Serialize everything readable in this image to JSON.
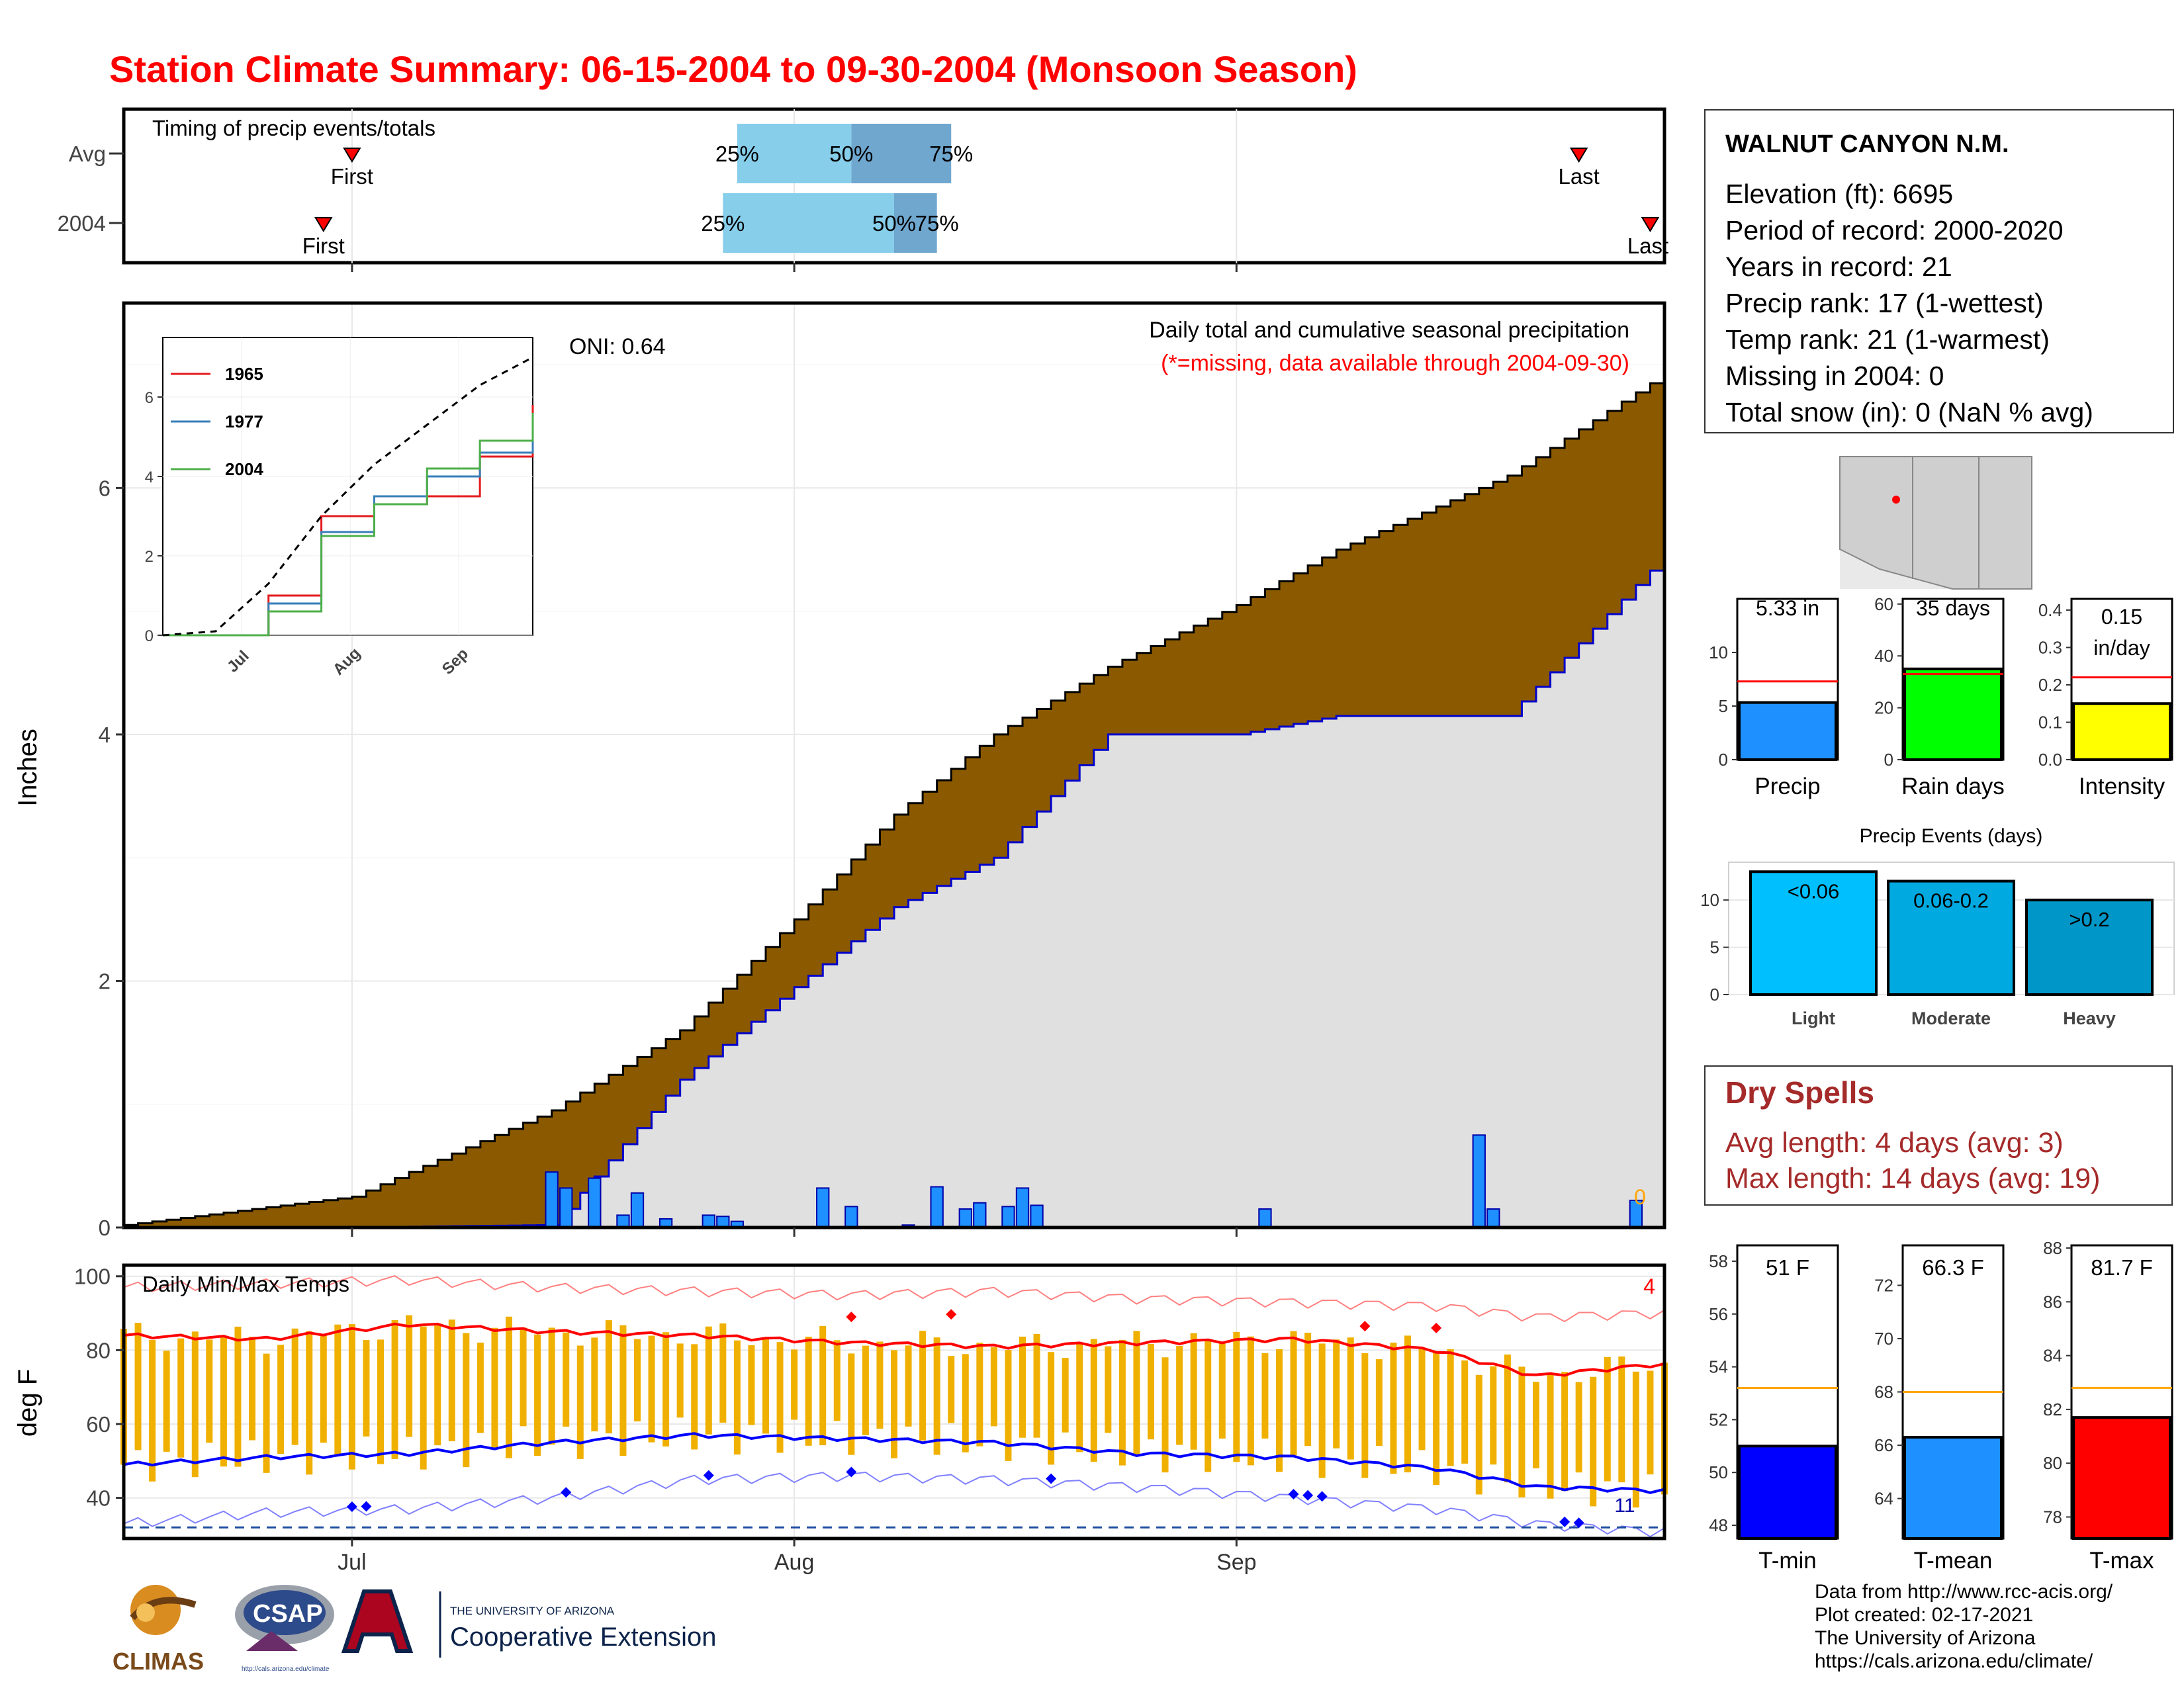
{
  "title": "Station Climate Summary: 06-15-2004 to 09-30-2004 (Monsoon Season)",
  "colors": {
    "title": "#ff0000",
    "cum_current": "#8b5a00",
    "cum_avg_fill": "#e0e0e0",
    "cum_avg_line": "#0000cc",
    "daily_bar": "#1e90ff",
    "bar_light": "#00bfff",
    "bar_moderate": "#00a9e0",
    "bar_heavy": "#0096c7",
    "tmax_line": "#ff0000",
    "tmin_line": "#0000ff",
    "temp_range_bar": "#f0b000",
    "avg_marker": "#ff0000",
    "avg_marker_orange": "#ffa500",
    "dry": "#a52a2a"
  },
  "timing": {
    "label": "Timing of precip events/totals",
    "rows": [
      {
        "name": "Avg",
        "first_label": "First",
        "last_label": "Last",
        "first": "07-01",
        "last": "09-25",
        "p25": "07-28",
        "p50": "08-05",
        "p75": "08-12",
        "pct_labels": [
          "25%",
          "50%",
          "75%"
        ]
      },
      {
        "name": "2004",
        "first_label": "First",
        "last_label": "Last",
        "first": "06-29",
        "last": "09-30",
        "p25": "07-27",
        "p50": "08-08",
        "p75": "08-11",
        "pct_labels": [
          "25%",
          "50%",
          "75%"
        ]
      }
    ]
  },
  "main_panel": {
    "ylabel": "Inches",
    "caption": "Daily total and cumulative seasonal precipitation",
    "missing_note": "(*=missing, data available through 2004-09-30)",
    "oni": "ONI: 0.64",
    "missing_count": "0",
    "y_ticks": [
      "0",
      "2",
      "4",
      "6"
    ],
    "x_ticks": [
      "Jul",
      "Aug",
      "Sep"
    ]
  },
  "inset": {
    "legend": [
      "1965",
      "1977",
      "2004"
    ],
    "legend_colors": [
      "#e41a1c",
      "#377eb8",
      "#4daf4a"
    ],
    "y_ticks": [
      "0",
      "2",
      "4",
      "6"
    ],
    "x_ticks": [
      "Jul",
      "Aug",
      "Sep"
    ]
  },
  "temp_panel": {
    "label": "Daily Min/Max Temps",
    "ylabel": "deg F",
    "y_ticks": [
      "40",
      "60",
      "80",
      "100"
    ],
    "x_ticks": [
      "Jul",
      "Aug",
      "Sep"
    ],
    "count_max": "4",
    "count_min": "11"
  },
  "station": {
    "name": "WALNUT CANYON N.M.",
    "lines": [
      "Elevation (ft): 6695",
      "Period of record: 2000-2020",
      "Years in record: 21",
      "Precip rank: 17 (1-wettest)",
      "Temp rank: 21 (1-warmest)",
      "Missing in 2004: 0",
      "Total snow (in): 0 (NaN % avg)"
    ]
  },
  "small_bars": [
    {
      "label": "Precip",
      "value_label": "5.33 in",
      "value": 5.33,
      "avg": 7.3,
      "ymax": 15,
      "ticks": [
        "0",
        "5",
        "10"
      ],
      "tick_vals": [
        0,
        5,
        10
      ],
      "color": "#1e90ff"
    },
    {
      "label": "Rain days",
      "value_label": "35 days",
      "value": 35,
      "avg": 33,
      "ymax": 62,
      "ticks": [
        "0",
        "20",
        "40",
        "60"
      ],
      "tick_vals": [
        0,
        20,
        40,
        60
      ],
      "color": "#00ff00"
    },
    {
      "label": "Intensity",
      "value_label": "0.15 in/day",
      "value_label_1": "0.15",
      "value_label_2": "in/day",
      "value": 0.15,
      "avg": 0.22,
      "ymax": 0.43,
      "ticks": [
        "0.0",
        "0.1",
        "0.2",
        "0.3",
        "0.4"
      ],
      "tick_vals": [
        0,
        0.1,
        0.2,
        0.3,
        0.4
      ],
      "color": "#ffff00"
    }
  ],
  "events": {
    "title": "Precip Events (days)",
    "categories": [
      "Light",
      "Moderate",
      "Heavy"
    ],
    "bin_labels": [
      "<0.06",
      "0.06-0.2",
      ">0.2"
    ],
    "values": [
      13,
      12,
      10
    ],
    "ticks": [
      "0",
      "5",
      "10"
    ],
    "ymax": 14
  },
  "dry_spells": {
    "title": "Dry Spells",
    "avg": "Avg length: 4 days (avg: 3)",
    "max": "Max length: 14 days (avg: 19)"
  },
  "temp_bars": [
    {
      "label": "T-min",
      "value_label": "51 F",
      "value": 51,
      "avg": 53.2,
      "ymin": 47.5,
      "ymax": 58.6,
      "ticks": [
        "48",
        "50",
        "52",
        "54",
        "56",
        "58"
      ],
      "tick_vals": [
        48,
        50,
        52,
        54,
        56,
        58
      ],
      "color": "#0000ff"
    },
    {
      "label": "T-mean",
      "value_label": "66.3 F",
      "value": 66.3,
      "avg": 68,
      "ymax": 73.5,
      "ymin": 62.5,
      "ticks": [
        "64",
        "66",
        "68",
        "70",
        "72"
      ],
      "tick_vals": [
        64,
        66,
        68,
        70,
        72
      ],
      "color": "#1e90ff"
    },
    {
      "label": "T-max",
      "value_label": "81.7 F",
      "value": 81.7,
      "avg": 82.8,
      "ymin": 77.2,
      "ymax": 88.1,
      "ticks": [
        "78",
        "80",
        "82",
        "84",
        "86",
        "88"
      ],
      "tick_vals": [
        78,
        80,
        82,
        84,
        86,
        88
      ],
      "color": "#ff0000"
    }
  ],
  "credits": [
    "Data from http://www.rcc-acis.org/",
    "Plot created: 02-17-2021",
    "The University of Arizona",
    "https://cals.arizona.edu/climate/"
  ],
  "logos": {
    "climas": "CLIMAS",
    "csap": "CSAP",
    "csap_url": "http://cals.arizona.edu/climate",
    "ua_top": "THE UNIVERSITY OF ARIZONA",
    "ua_bottom": "Cooperative Extension"
  },
  "chart_data": [
    {
      "type": "area",
      "title": "Daily total and cumulative seasonal precipitation",
      "ylabel": "Inches",
      "ylim": [
        0,
        7.5
      ],
      "x": [
        "06-15",
        "07-01",
        "07-15",
        "07-24",
        "08-01",
        "08-08",
        "08-15",
        "08-23",
        "09-01",
        "09-08",
        "09-20",
        "09-30"
      ],
      "series": [
        {
          "name": "Average cumulative",
          "values": [
            0.02,
            0.25,
            0.95,
            1.6,
            2.5,
            3.35,
            4.0,
            4.55,
            5.05,
            5.5,
            6.1,
            6.85
          ]
        },
        {
          "name": "2004 cumulative",
          "values": [
            0.0,
            0.0,
            0.02,
            1.2,
            1.95,
            2.6,
            3.0,
            4.0,
            4.0,
            4.15,
            4.15,
            5.33
          ]
        }
      ],
      "daily_precip": [
        {
          "date": "07-15",
          "value": 0.45
        },
        {
          "date": "07-16",
          "value": 0.32
        },
        {
          "date": "07-18",
          "value": 0.4
        },
        {
          "date": "07-20",
          "value": 0.1
        },
        {
          "date": "07-21",
          "value": 0.28
        },
        {
          "date": "07-23",
          "value": 0.07
        },
        {
          "date": "07-26",
          "value": 0.1
        },
        {
          "date": "07-27",
          "value": 0.09
        },
        {
          "date": "07-28",
          "value": 0.05
        },
        {
          "date": "08-03",
          "value": 0.32
        },
        {
          "date": "08-05",
          "value": 0.17
        },
        {
          "date": "08-09",
          "value": 0.02
        },
        {
          "date": "08-11",
          "value": 0.33
        },
        {
          "date": "08-13",
          "value": 0.15
        },
        {
          "date": "08-14",
          "value": 0.2
        },
        {
          "date": "08-16",
          "value": 0.17
        },
        {
          "date": "08-17",
          "value": 0.32
        },
        {
          "date": "08-18",
          "value": 0.18
        },
        {
          "date": "09-03",
          "value": 0.15
        },
        {
          "date": "09-18",
          "value": 0.75
        },
        {
          "date": "09-19",
          "value": 0.15
        },
        {
          "date": "09-29",
          "value": 0.22
        }
      ]
    },
    {
      "type": "line",
      "title": "Daily Min/Max Temps",
      "ylabel": "deg F",
      "ylim": [
        29,
        103
      ],
      "x": [
        "06-15",
        "06-25",
        "07-05",
        "07-15",
        "07-25",
        "08-05",
        "08-15",
        "08-25",
        "09-05",
        "09-15",
        "09-22",
        "09-30"
      ],
      "series": [
        {
          "name": "Avg max",
          "values": [
            84,
            83,
            87,
            85,
            84,
            82,
            81,
            82,
            83,
            80,
            73,
            76
          ]
        },
        {
          "name": "Avg min",
          "values": [
            49,
            51,
            52,
            55,
            57,
            56,
            55,
            52,
            51,
            48,
            43,
            42
          ]
        },
        {
          "name": "Record max",
          "values": [
            97,
            98,
            99,
            97,
            96,
            95,
            96,
            94,
            93,
            92,
            89,
            90
          ]
        },
        {
          "name": "Record min",
          "values": [
            33,
            36,
            37,
            40,
            45,
            46,
            45,
            43,
            40,
            37,
            33,
            31
          ]
        }
      ]
    },
    {
      "type": "line",
      "title": "",
      "x_ticks": [
        "Jul",
        "Aug",
        "Sep"
      ],
      "ylim": [
        0,
        7.5
      ],
      "series": [
        {
          "name": "1965",
          "values": [
            0.0,
            0.0,
            1.0,
            3.0,
            3.3,
            3.5,
            4.5,
            5.8
          ]
        },
        {
          "name": "1977",
          "values": [
            0.0,
            0.0,
            0.8,
            2.6,
            3.5,
            4.0,
            4.6,
            5.6
          ]
        },
        {
          "name": "2004",
          "values": [
            0.0,
            0.0,
            0.6,
            2.5,
            3.3,
            4.2,
            4.9,
            5.6
          ]
        },
        {
          "values": [
            0.0,
            0.1,
            1.3,
            3.0,
            4.3,
            5.3,
            6.3,
            7.0
          ]
        }
      ]
    }
  ]
}
